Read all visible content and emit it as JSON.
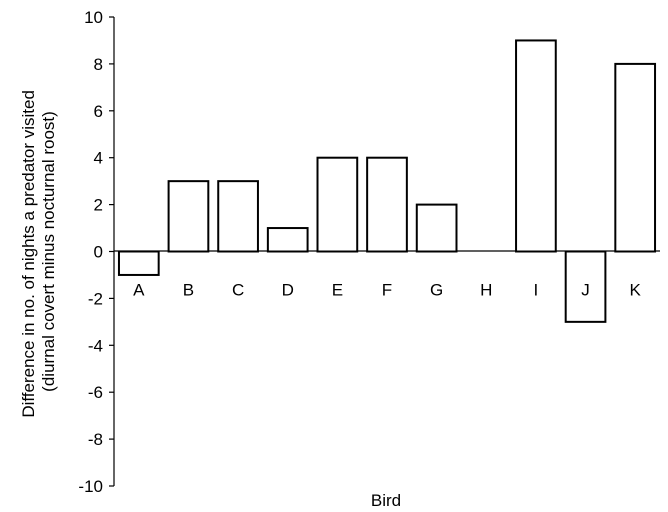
{
  "chart_data": {
    "type": "bar",
    "title": "",
    "xlabel": "Bird",
    "ylabel_lines": [
      "Difference in no. of nights a predator visited",
      "(diurnal covert minus nocturnal roost)"
    ],
    "categories": [
      "A",
      "B",
      "C",
      "D",
      "E",
      "F",
      "G",
      "H",
      "I",
      "J",
      "K"
    ],
    "values": [
      -1,
      3,
      3,
      1,
      4,
      4,
      2,
      0,
      9,
      -3,
      8
    ],
    "ylim": [
      -10,
      10
    ],
    "yticks": [
      10,
      8,
      6,
      4,
      2,
      0,
      -2,
      -4,
      -6,
      -8,
      -10
    ],
    "ytick_labels": [
      "10",
      "8",
      "6",
      "4",
      "2",
      "0",
      "-2",
      "-4",
      "-6",
      "-8",
      "-10"
    ],
    "grid": false,
    "legend": "none",
    "bar_fill": "#ffffff",
    "bar_stroke": "#000000"
  }
}
